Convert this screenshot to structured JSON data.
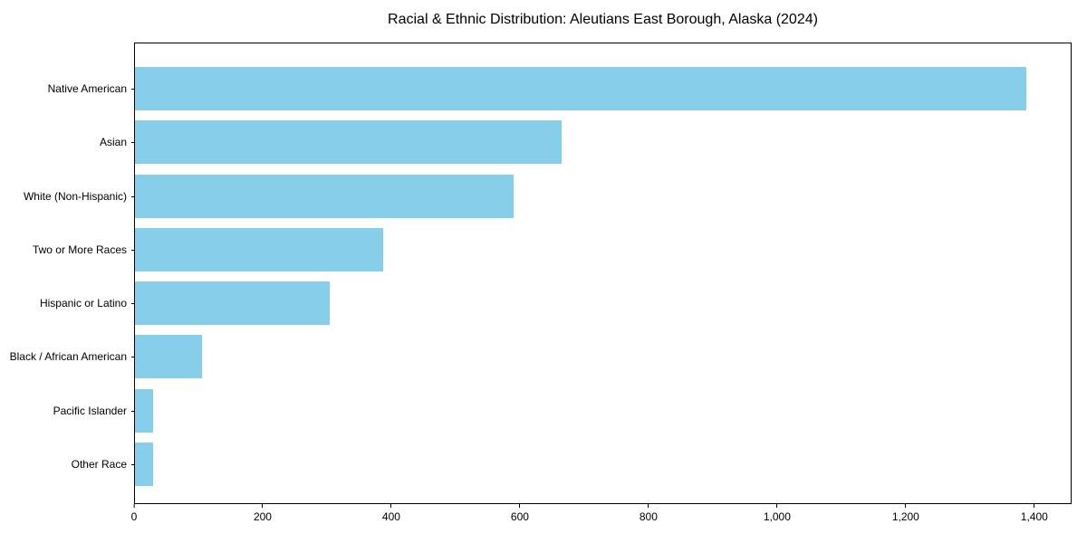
{
  "chart_data": {
    "type": "bar",
    "orientation": "horizontal",
    "title": "Racial & Ethnic Distribution: Aleutians East Borough, Alaska (2024)",
    "categories": [
      "Native American",
      "Asian",
      "White (Non-Hispanic)",
      "Two or More Races",
      "Hispanic or Latino",
      "Black / African American",
      "Pacific Islander",
      "Other Race"
    ],
    "values": [
      1389,
      665,
      590,
      387,
      303,
      104,
      28,
      28
    ],
    "xlabel": "",
    "ylabel": "",
    "xlim": [
      0,
      1458
    ],
    "xticks": [
      0,
      200,
      400,
      600,
      800,
      1000,
      1200,
      1400
    ],
    "xtick_labels": [
      "0",
      "200",
      "400",
      "600",
      "800",
      "1,000",
      "1,200",
      "1,400"
    ],
    "bar_color": "#87CEEB",
    "axis_color": "#000000",
    "background_color": "#ffffff",
    "grid": false,
    "legend": null
  }
}
